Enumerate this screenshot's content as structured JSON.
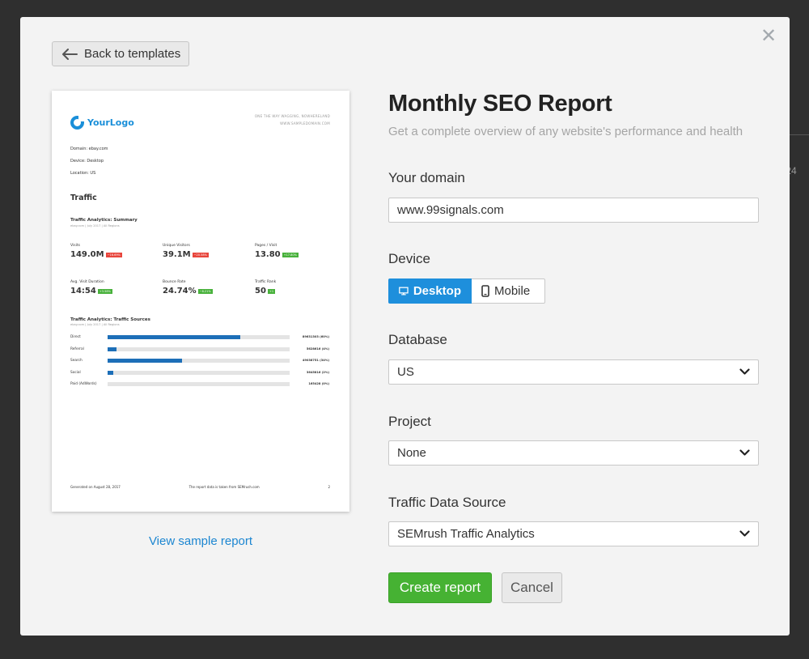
{
  "background": {
    "partial_text": "te 24"
  },
  "modal": {
    "back_label": "Back to templates",
    "title": "Monthly SEO Report",
    "subtitle": "Get a complete overview of any website's performance and health",
    "sample_link": "View sample report"
  },
  "preview": {
    "logo_text": "YourLogo",
    "address_line1": "ONE THE WAY WAGGING, NOWHERELAND",
    "address_line2": "WWW.SAMPLEDOMAIN.COM",
    "meta_domain": "Domain: ebay.com",
    "meta_device": "Device: Desktop",
    "meta_location": "Location: US",
    "section_title": "Traffic",
    "summary_title": "Traffic Analytics: Summary",
    "summary_sub": "ebay.com | July 2017 | All Regions",
    "metrics": [
      {
        "label": "Visits",
        "value": "149.0M",
        "delta": "−16.69%",
        "color": "red"
      },
      {
        "label": "Unique Visitors",
        "value": "39.1M",
        "delta": "−20.58%",
        "color": "red"
      },
      {
        "label": "Pages / Visit",
        "value": "13.80",
        "delta": "+17.80%",
        "color": "green"
      },
      {
        "label": "Avg. Visit Duration",
        "value": "14:54",
        "delta": "+3.58%",
        "color": "green"
      },
      {
        "label": "Bounce Rate",
        "value": "24.74%",
        "delta": "−8.21%",
        "color": "green"
      },
      {
        "label": "Traffic Rank",
        "value": "50",
        "delta": "+1",
        "color": "green"
      }
    ],
    "sources_title": "Traffic Analytics: Traffic Sources",
    "sources_sub": "ebay.com | July 2017 | All Regions",
    "sources": [
      {
        "label": "Direct",
        "value": "89631303 (60%)",
        "share": 0.73
      },
      {
        "label": "Referral",
        "value": "5628616 (4%)",
        "share": 0.05
      },
      {
        "label": "Search",
        "value": "49038751 (34%)",
        "share": 0.41
      },
      {
        "label": "Social",
        "value": "3645816 (2%)",
        "share": 0.03
      },
      {
        "label": "Paid (AdWords)",
        "value": "165428 (0%)",
        "share": 0.0
      }
    ],
    "footer_left": "Generated on August 28, 2017",
    "footer_mid": "The report data is taken from SEMrush.com",
    "footer_page": "2"
  },
  "form": {
    "domain_label": "Your domain",
    "domain_value": "www.99signals.com",
    "device_label": "Device",
    "device_desktop": "Desktop",
    "device_mobile": "Mobile",
    "database_label": "Database",
    "database_value": "US",
    "project_label": "Project",
    "project_value": "None",
    "source_label": "Traffic Data Source",
    "source_value": "SEMrush Traffic Analytics",
    "create_label": "Create report",
    "cancel_label": "Cancel"
  },
  "colors": {
    "accent_blue": "#1e8fdc",
    "create_green": "#46b233",
    "link_blue": "#1c86d1"
  },
  "icons": [
    "close-icon",
    "arrow-left-icon",
    "desktop-icon",
    "mobile-icon",
    "chevron-down-icon"
  ]
}
